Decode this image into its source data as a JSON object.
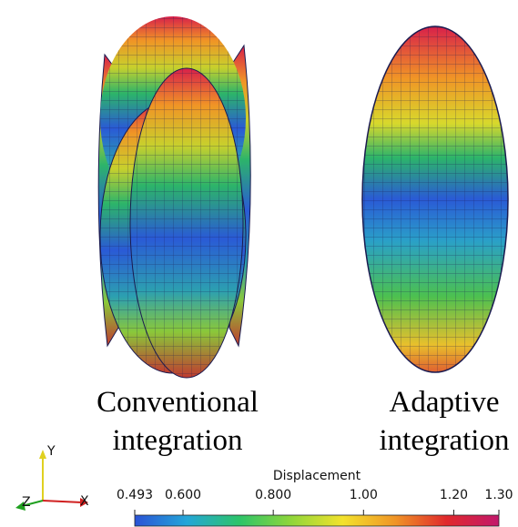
{
  "captions": [
    {
      "lines": [
        "Conventional",
        "integration"
      ]
    },
    {
      "lines": [
        "Adaptive",
        "integration"
      ]
    }
  ],
  "axes_triad": {
    "x": "X",
    "y": "Y",
    "z": "Z"
  },
  "colorbar": {
    "title": "Displacement",
    "range": [
      0.493,
      1.3
    ],
    "ticks": [
      0.493,
      {
        "value": 0.6,
        "label": "0.600"
      },
      {
        "value": 0.8,
        "label": "0.800"
      },
      {
        "value": 1.0,
        "label": "1.00"
      },
      {
        "value": 1.2,
        "label": "1.20"
      },
      {
        "value": 1.3,
        "label": "1.30"
      }
    ],
    "colors": [
      "#2a52d6",
      "#24a6d8",
      "#2cc46a",
      "#8fd63a",
      "#f3e22c",
      "#f09526",
      "#e0282c",
      "#c2186c"
    ]
  }
}
